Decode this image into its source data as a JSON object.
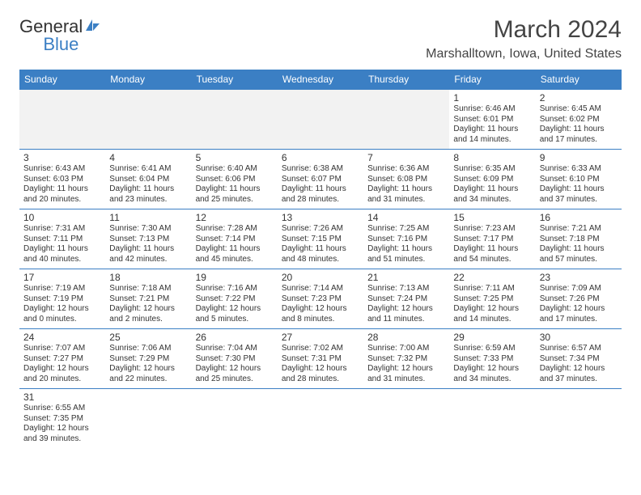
{
  "brand": {
    "part1": "General",
    "part2": "Blue"
  },
  "title": "March 2024",
  "location": "Marshalltown, Iowa, United States",
  "colors": {
    "header_bg": "#3b7fc4",
    "header_fg": "#ffffff",
    "border": "#3b7fc4",
    "empty_bg": "#f2f2f2",
    "text": "#333333"
  },
  "day_headers": [
    "Sunday",
    "Monday",
    "Tuesday",
    "Wednesday",
    "Thursday",
    "Friday",
    "Saturday"
  ],
  "weeks": [
    [
      null,
      null,
      null,
      null,
      null,
      {
        "n": "1",
        "sr": "Sunrise: 6:46 AM",
        "ss": "Sunset: 6:01 PM",
        "d1": "Daylight: 11 hours",
        "d2": "and 14 minutes."
      },
      {
        "n": "2",
        "sr": "Sunrise: 6:45 AM",
        "ss": "Sunset: 6:02 PM",
        "d1": "Daylight: 11 hours",
        "d2": "and 17 minutes."
      }
    ],
    [
      {
        "n": "3",
        "sr": "Sunrise: 6:43 AM",
        "ss": "Sunset: 6:03 PM",
        "d1": "Daylight: 11 hours",
        "d2": "and 20 minutes."
      },
      {
        "n": "4",
        "sr": "Sunrise: 6:41 AM",
        "ss": "Sunset: 6:04 PM",
        "d1": "Daylight: 11 hours",
        "d2": "and 23 minutes."
      },
      {
        "n": "5",
        "sr": "Sunrise: 6:40 AM",
        "ss": "Sunset: 6:06 PM",
        "d1": "Daylight: 11 hours",
        "d2": "and 25 minutes."
      },
      {
        "n": "6",
        "sr": "Sunrise: 6:38 AM",
        "ss": "Sunset: 6:07 PM",
        "d1": "Daylight: 11 hours",
        "d2": "and 28 minutes."
      },
      {
        "n": "7",
        "sr": "Sunrise: 6:36 AM",
        "ss": "Sunset: 6:08 PM",
        "d1": "Daylight: 11 hours",
        "d2": "and 31 minutes."
      },
      {
        "n": "8",
        "sr": "Sunrise: 6:35 AM",
        "ss": "Sunset: 6:09 PM",
        "d1": "Daylight: 11 hours",
        "d2": "and 34 minutes."
      },
      {
        "n": "9",
        "sr": "Sunrise: 6:33 AM",
        "ss": "Sunset: 6:10 PM",
        "d1": "Daylight: 11 hours",
        "d2": "and 37 minutes."
      }
    ],
    [
      {
        "n": "10",
        "sr": "Sunrise: 7:31 AM",
        "ss": "Sunset: 7:11 PM",
        "d1": "Daylight: 11 hours",
        "d2": "and 40 minutes."
      },
      {
        "n": "11",
        "sr": "Sunrise: 7:30 AM",
        "ss": "Sunset: 7:13 PM",
        "d1": "Daylight: 11 hours",
        "d2": "and 42 minutes."
      },
      {
        "n": "12",
        "sr": "Sunrise: 7:28 AM",
        "ss": "Sunset: 7:14 PM",
        "d1": "Daylight: 11 hours",
        "d2": "and 45 minutes."
      },
      {
        "n": "13",
        "sr": "Sunrise: 7:26 AM",
        "ss": "Sunset: 7:15 PM",
        "d1": "Daylight: 11 hours",
        "d2": "and 48 minutes."
      },
      {
        "n": "14",
        "sr": "Sunrise: 7:25 AM",
        "ss": "Sunset: 7:16 PM",
        "d1": "Daylight: 11 hours",
        "d2": "and 51 minutes."
      },
      {
        "n": "15",
        "sr": "Sunrise: 7:23 AM",
        "ss": "Sunset: 7:17 PM",
        "d1": "Daylight: 11 hours",
        "d2": "and 54 minutes."
      },
      {
        "n": "16",
        "sr": "Sunrise: 7:21 AM",
        "ss": "Sunset: 7:18 PM",
        "d1": "Daylight: 11 hours",
        "d2": "and 57 minutes."
      }
    ],
    [
      {
        "n": "17",
        "sr": "Sunrise: 7:19 AM",
        "ss": "Sunset: 7:19 PM",
        "d1": "Daylight: 12 hours",
        "d2": "and 0 minutes."
      },
      {
        "n": "18",
        "sr": "Sunrise: 7:18 AM",
        "ss": "Sunset: 7:21 PM",
        "d1": "Daylight: 12 hours",
        "d2": "and 2 minutes."
      },
      {
        "n": "19",
        "sr": "Sunrise: 7:16 AM",
        "ss": "Sunset: 7:22 PM",
        "d1": "Daylight: 12 hours",
        "d2": "and 5 minutes."
      },
      {
        "n": "20",
        "sr": "Sunrise: 7:14 AM",
        "ss": "Sunset: 7:23 PM",
        "d1": "Daylight: 12 hours",
        "d2": "and 8 minutes."
      },
      {
        "n": "21",
        "sr": "Sunrise: 7:13 AM",
        "ss": "Sunset: 7:24 PM",
        "d1": "Daylight: 12 hours",
        "d2": "and 11 minutes."
      },
      {
        "n": "22",
        "sr": "Sunrise: 7:11 AM",
        "ss": "Sunset: 7:25 PM",
        "d1": "Daylight: 12 hours",
        "d2": "and 14 minutes."
      },
      {
        "n": "23",
        "sr": "Sunrise: 7:09 AM",
        "ss": "Sunset: 7:26 PM",
        "d1": "Daylight: 12 hours",
        "d2": "and 17 minutes."
      }
    ],
    [
      {
        "n": "24",
        "sr": "Sunrise: 7:07 AM",
        "ss": "Sunset: 7:27 PM",
        "d1": "Daylight: 12 hours",
        "d2": "and 20 minutes."
      },
      {
        "n": "25",
        "sr": "Sunrise: 7:06 AM",
        "ss": "Sunset: 7:29 PM",
        "d1": "Daylight: 12 hours",
        "d2": "and 22 minutes."
      },
      {
        "n": "26",
        "sr": "Sunrise: 7:04 AM",
        "ss": "Sunset: 7:30 PM",
        "d1": "Daylight: 12 hours",
        "d2": "and 25 minutes."
      },
      {
        "n": "27",
        "sr": "Sunrise: 7:02 AM",
        "ss": "Sunset: 7:31 PM",
        "d1": "Daylight: 12 hours",
        "d2": "and 28 minutes."
      },
      {
        "n": "28",
        "sr": "Sunrise: 7:00 AM",
        "ss": "Sunset: 7:32 PM",
        "d1": "Daylight: 12 hours",
        "d2": "and 31 minutes."
      },
      {
        "n": "29",
        "sr": "Sunrise: 6:59 AM",
        "ss": "Sunset: 7:33 PM",
        "d1": "Daylight: 12 hours",
        "d2": "and 34 minutes."
      },
      {
        "n": "30",
        "sr": "Sunrise: 6:57 AM",
        "ss": "Sunset: 7:34 PM",
        "d1": "Daylight: 12 hours",
        "d2": "and 37 minutes."
      }
    ],
    [
      {
        "n": "31",
        "sr": "Sunrise: 6:55 AM",
        "ss": "Sunset: 7:35 PM",
        "d1": "Daylight: 12 hours",
        "d2": "and 39 minutes."
      },
      null,
      null,
      null,
      null,
      null,
      null
    ]
  ]
}
